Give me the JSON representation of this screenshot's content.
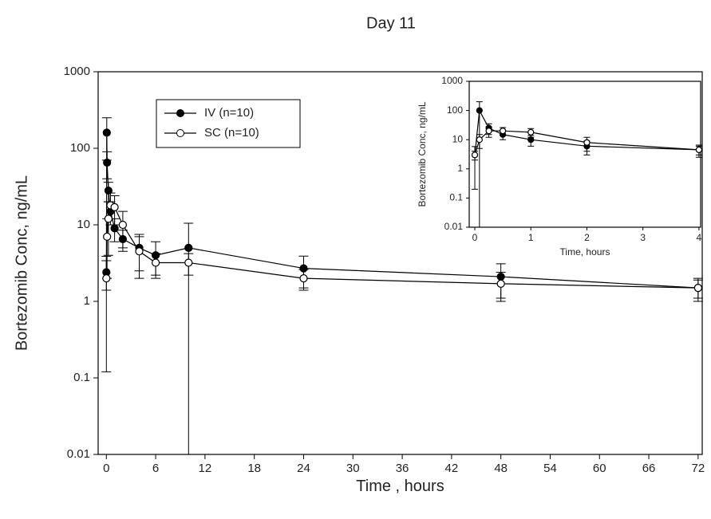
{
  "chart_data": [
    {
      "type": "line",
      "title": "Day 11",
      "xlabel": "Time , hours",
      "ylabel": "Bortezomib Conc, ng/mL",
      "yscale": "log",
      "xlim": [
        -1,
        72.5
      ],
      "ylim": [
        0.01,
        1000
      ],
      "xticks": [
        0,
        6,
        12,
        18,
        24,
        30,
        36,
        42,
        48,
        54,
        60,
        66,
        72
      ],
      "yticks": [
        0.01,
        0.1,
        1,
        10,
        100,
        1000
      ],
      "legend": "upper left",
      "series": [
        {
          "name": "IV (n=10)",
          "color": "#000000",
          "filled": true,
          "x": [
            0,
            0.05,
            0.083,
            0.25,
            0.5,
            1,
            2,
            4,
            6,
            10,
            24,
            48,
            72
          ],
          "values": [
            2.4,
            160,
            65,
            28,
            15,
            9,
            6.5,
            5,
            4,
            5,
            2.7,
            2.1,
            1.5
          ],
          "errors": [
            1,
            90,
            25,
            8,
            5,
            3,
            2,
            2.5,
            2,
            5.5,
            1.2,
            1,
            0.5
          ]
        },
        {
          "name": "SC (n=10)",
          "color": "#000000",
          "filled": false,
          "x": [
            0,
            0.083,
            0.25,
            0.5,
            1,
            2,
            4,
            6,
            10,
            24,
            48,
            72
          ],
          "values": [
            2,
            7,
            12,
            18,
            17,
            10,
            4.5,
            3.2,
            3.2,
            2,
            1.7,
            1.5
          ],
          "errors": [
            1.88,
            5,
            8,
            8,
            7,
            5,
            2.5,
            1,
            1,
            0.6,
            0.7,
            0.4
          ]
        }
      ]
    },
    {
      "type": "line",
      "xlabel": "Time, hours",
      "ylabel": "Bortezomib Conc, ng/mL",
      "yscale": "log",
      "xlim": [
        -0.1,
        4.03
      ],
      "ylim": [
        0.01,
        1000
      ],
      "xticks": [
        0,
        1,
        2,
        3,
        4
      ],
      "yticks": [
        0.01,
        0.1,
        1,
        10,
        100,
        1000
      ],
      "series": [
        {
          "color": "#000000",
          "filled": true,
          "x": [
            0,
            0.083,
            0.25,
            0.5,
            1,
            2,
            4
          ],
          "values": [
            3,
            100,
            25,
            15,
            10,
            6,
            4.5
          ],
          "errors": [
            1,
            100,
            10,
            5,
            4,
            3,
            1.5
          ]
        },
        {
          "color": "#000000",
          "filled": false,
          "x": [
            0,
            0.083,
            0.25,
            0.5,
            1,
            2,
            4
          ],
          "values": [
            3,
            10,
            20,
            20,
            18,
            8,
            4.5
          ],
          "errors": [
            2.8,
            5,
            8,
            6,
            6,
            4,
            2
          ]
        }
      ]
    }
  ]
}
